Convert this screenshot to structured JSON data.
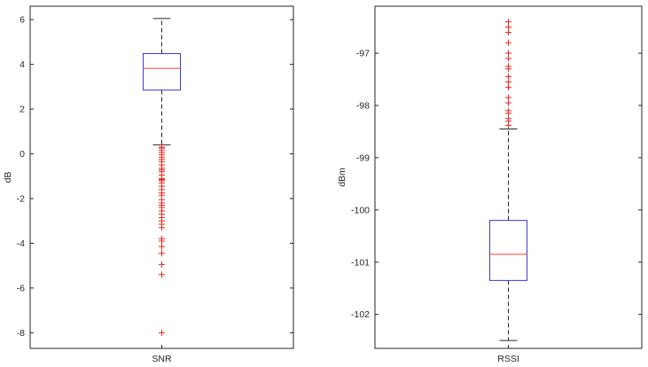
{
  "chart_data": [
    {
      "type": "box",
      "xlabel": "",
      "category": "SNR",
      "ylabel": "dB",
      "ylim": [
        -8.7,
        6.6
      ],
      "yticks": [
        6,
        4,
        2,
        0,
        -2,
        -4,
        -6,
        -8
      ],
      "grid": false,
      "box": {
        "q1": 2.85,
        "median": 3.82,
        "q3": 4.48,
        "whisker_low": 0.4,
        "whisker_high": 6.05
      },
      "outliers": [
        0.3,
        0.25,
        0.15,
        0.05,
        -0.05,
        -0.15,
        -0.25,
        -0.35,
        -0.5,
        -0.65,
        -0.72,
        -0.8,
        -0.95,
        -1.1,
        -1.15,
        -1.2,
        -1.3,
        -1.45,
        -1.6,
        -1.75,
        -1.85,
        -2.05,
        -2.2,
        -2.3,
        -2.4,
        -2.55,
        -2.7,
        -2.85,
        -3.0,
        -3.15,
        -3.3,
        -3.8,
        -3.9,
        -4.15,
        -4.45,
        -4.95,
        -5.4,
        -8.0
      ]
    },
    {
      "type": "box",
      "xlabel": "",
      "category": "RSSI",
      "ylabel": "dBm",
      "ylim": [
        -102.65,
        -96.1
      ],
      "yticks": [
        -97,
        -98,
        -99,
        -100,
        -101,
        -102
      ],
      "grid": false,
      "box": {
        "q1": -101.35,
        "median": -100.85,
        "q3": -100.2,
        "whisker_low": -102.5,
        "whisker_high": -98.45
      },
      "outliers": [
        -96.4,
        -96.5,
        -96.6,
        -96.8,
        -97.0,
        -97.1,
        -97.25,
        -97.3,
        -97.45,
        -97.55,
        -97.65,
        -97.85,
        -97.95,
        -98.1,
        -98.15,
        -98.25,
        -98.3,
        -98.38
      ]
    }
  ],
  "colors": {
    "box": "#3c3cc8",
    "median": "#ff3c3c",
    "whisker": "#262626",
    "outlier": "#e8261a"
  }
}
